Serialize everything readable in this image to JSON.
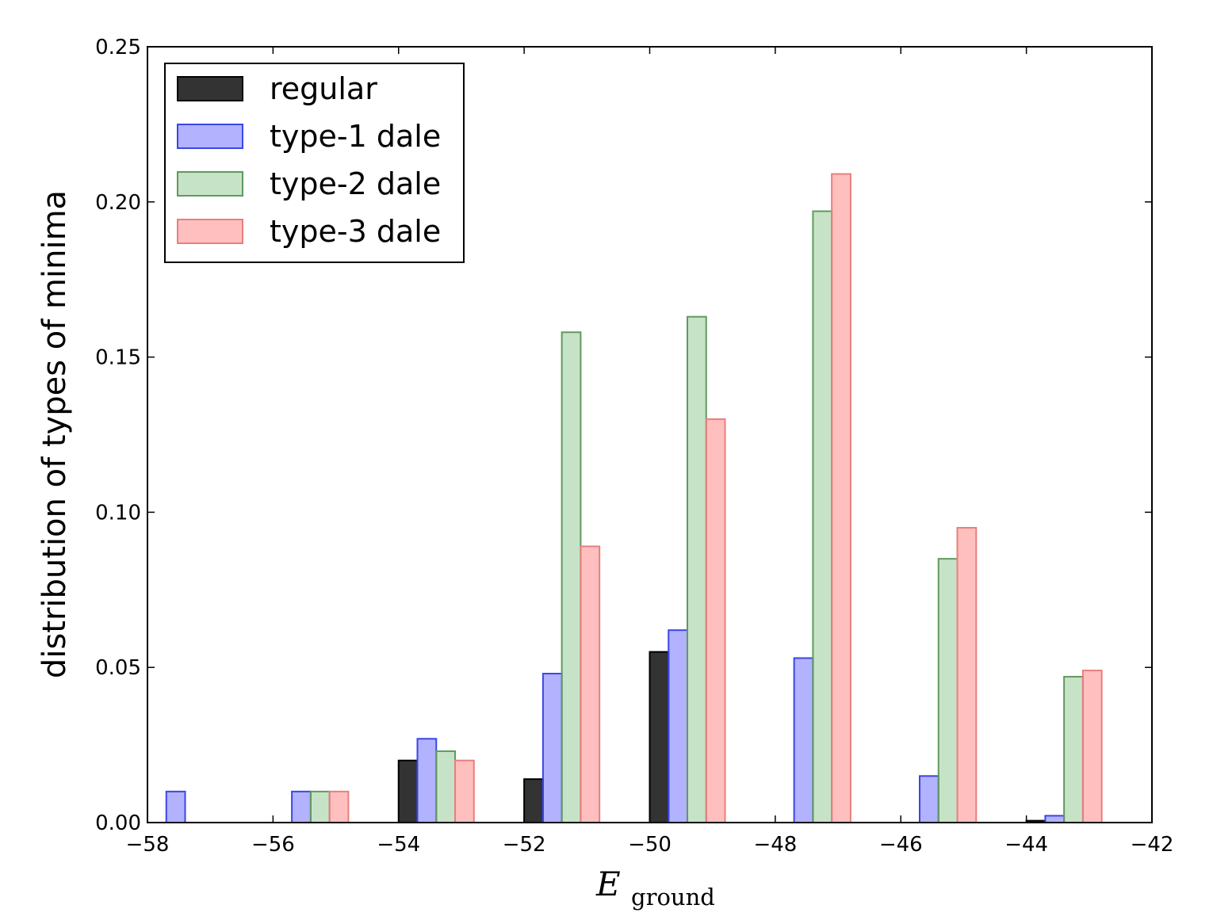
{
  "chart_data": {
    "type": "bar",
    "xlabel_main": "E",
    "xlabel_sub": "ground",
    "ylabel": "distribution of types of minima",
    "xlim": [
      -58,
      -42
    ],
    "ylim": [
      0,
      0.25
    ],
    "xticks": [
      -58,
      -56,
      -54,
      -52,
      -50,
      -48,
      -46,
      -44,
      -42
    ],
    "xtick_labels": [
      "−58",
      "−56",
      "−54",
      "−52",
      "−50",
      "−48",
      "−46",
      "−44",
      "−42"
    ],
    "yticks": [
      0,
      0.05,
      0.1,
      0.15,
      0.2,
      0.25
    ],
    "ytick_labels": [
      "0.00",
      "0.05",
      "0.10",
      "0.15",
      "0.20",
      "0.25"
    ],
    "legend_position": "top-left",
    "bin_starts": [
      -58,
      -56,
      -54,
      -52,
      -50,
      -48,
      -46,
      -44
    ],
    "bar_width": 0.3,
    "series": [
      {
        "name": "regular",
        "color": "#000000",
        "opacity": 0.8,
        "edge": "#000000",
        "values": [
          0.0,
          0.0,
          0.02,
          0.014,
          0.055,
          0.0,
          0.0,
          0.0006
        ]
      },
      {
        "name": "type-1 dale",
        "color": "#0000ff",
        "opacity": 0.3,
        "edge": "#3a46e8",
        "values": [
          0.01,
          0.01,
          0.027,
          0.048,
          0.062,
          0.053,
          0.015,
          0.0022
        ]
      },
      {
        "name": "type-2 dale",
        "color": "#008000",
        "opacity": 0.22,
        "edge": "#5f9a5f",
        "values": [
          0.0,
          0.01,
          0.023,
          0.158,
          0.163,
          0.197,
          0.085,
          0.047
        ]
      },
      {
        "name": "type-3 dale",
        "color": "#ff0000",
        "opacity": 0.25,
        "edge": "#e87e7e",
        "values": [
          0.0,
          0.01,
          0.02,
          0.089,
          0.13,
          0.209,
          0.095,
          0.049
        ]
      }
    ]
  }
}
